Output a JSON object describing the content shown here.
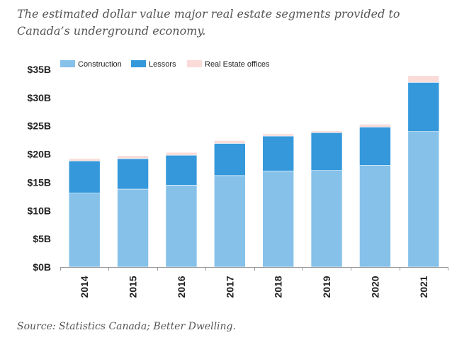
{
  "title": "The estimated dollar value major real estate segments provided to Canada’s underground economy.",
  "source": "Source: Statistics Canada; Better Dwelling.",
  "chart_data": {
    "type": "bar",
    "stacked": true,
    "categories": [
      "2014",
      "2015",
      "2016",
      "2017",
      "2018",
      "2019",
      "2020",
      "2021"
    ],
    "series": [
      {
        "name": "Construction",
        "color": "#85c1e9",
        "values": [
          13.1,
          13.8,
          14.5,
          16.2,
          17.0,
          17.1,
          18.0,
          24.0
        ]
      },
      {
        "name": "Lessors",
        "color": "#3498db",
        "values": [
          5.7,
          5.4,
          5.3,
          5.7,
          6.2,
          6.7,
          6.8,
          8.7
        ]
      },
      {
        "name": "Real Estate offices",
        "color": "#fadbd8",
        "values": [
          0.4,
          0.5,
          0.5,
          0.5,
          0.4,
          0.3,
          0.5,
          1.2
        ]
      }
    ],
    "y_ticks": [
      "$0B",
      "$5B",
      "$10B",
      "$15B",
      "$20B",
      "$25B",
      "$30B",
      "$35B"
    ],
    "ylim": [
      0,
      35
    ],
    "xlabel": "",
    "ylabel": "",
    "legend_position": "top-left"
  }
}
